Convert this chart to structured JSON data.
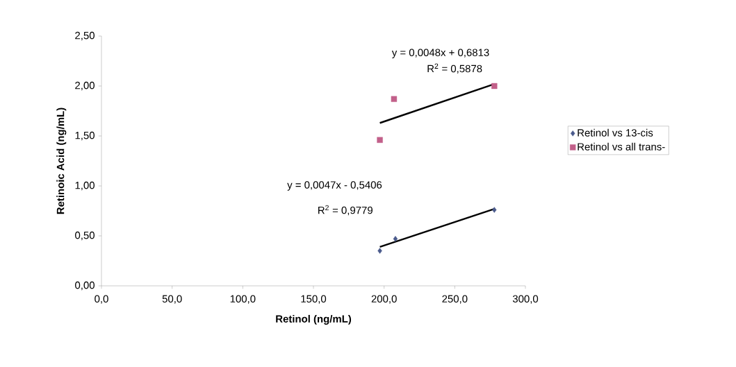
{
  "chart_data": {
    "type": "scatter",
    "xlabel": "Retinol (ng/mL)",
    "ylabel": "Retinoic Acid (ng/mL)",
    "series": [
      {
        "name": "Retinol vs 13-cis",
        "color": "#4a5a8c",
        "marker": "diamond",
        "x": [
          197,
          208,
          278
        ],
        "values": [
          0.35,
          0.47,
          0.76
        ]
      },
      {
        "name": "Retinol vs all trans-",
        "color": "#c2608a",
        "marker": "square",
        "x": [
          197,
          207,
          278
        ],
        "values": [
          1.46,
          1.87,
          2.0
        ]
      },
      {
        "type": "line",
        "color": "#000000",
        "marker": "none",
        "x": [
          197,
          278
        ],
        "values": [
          0.39,
          0.77
        ]
      },
      {
        "type": "line",
        "color": "#000000",
        "marker": "none",
        "x": [
          197,
          278
        ],
        "values": [
          1.63,
          2.02
        ]
      }
    ],
    "xlim": [
      0,
      300
    ],
    "ylim": [
      0,
      2.5
    ],
    "xticks": [
      {
        "value": 0,
        "label": "0,0"
      },
      {
        "value": 50,
        "label": "50,0"
      },
      {
        "value": 100,
        "label": "100,0"
      },
      {
        "value": 150,
        "label": "150,0"
      },
      {
        "value": 200,
        "label": "200,0"
      },
      {
        "value": 250,
        "label": "250,0"
      },
      {
        "value": 300,
        "label": "300,0"
      }
    ],
    "yticks": [
      {
        "value": 0,
        "label": "0,00"
      },
      {
        "value": 0.5,
        "label": "0,50"
      },
      {
        "value": 1,
        "label": "1,00"
      },
      {
        "value": 1.5,
        "label": "1,50"
      },
      {
        "value": 2,
        "label": "2,00"
      },
      {
        "value": 2.5,
        "label": "2,50"
      }
    ],
    "annotations": [
      "y = 0,0048x + 0,6813",
      "R$^{2}$ = 0,5878",
      "y = 0,0047x - 0,5406",
      "R$^{2}$ = 0,9779"
    ],
    "legend": "right",
    "grid": false
  }
}
